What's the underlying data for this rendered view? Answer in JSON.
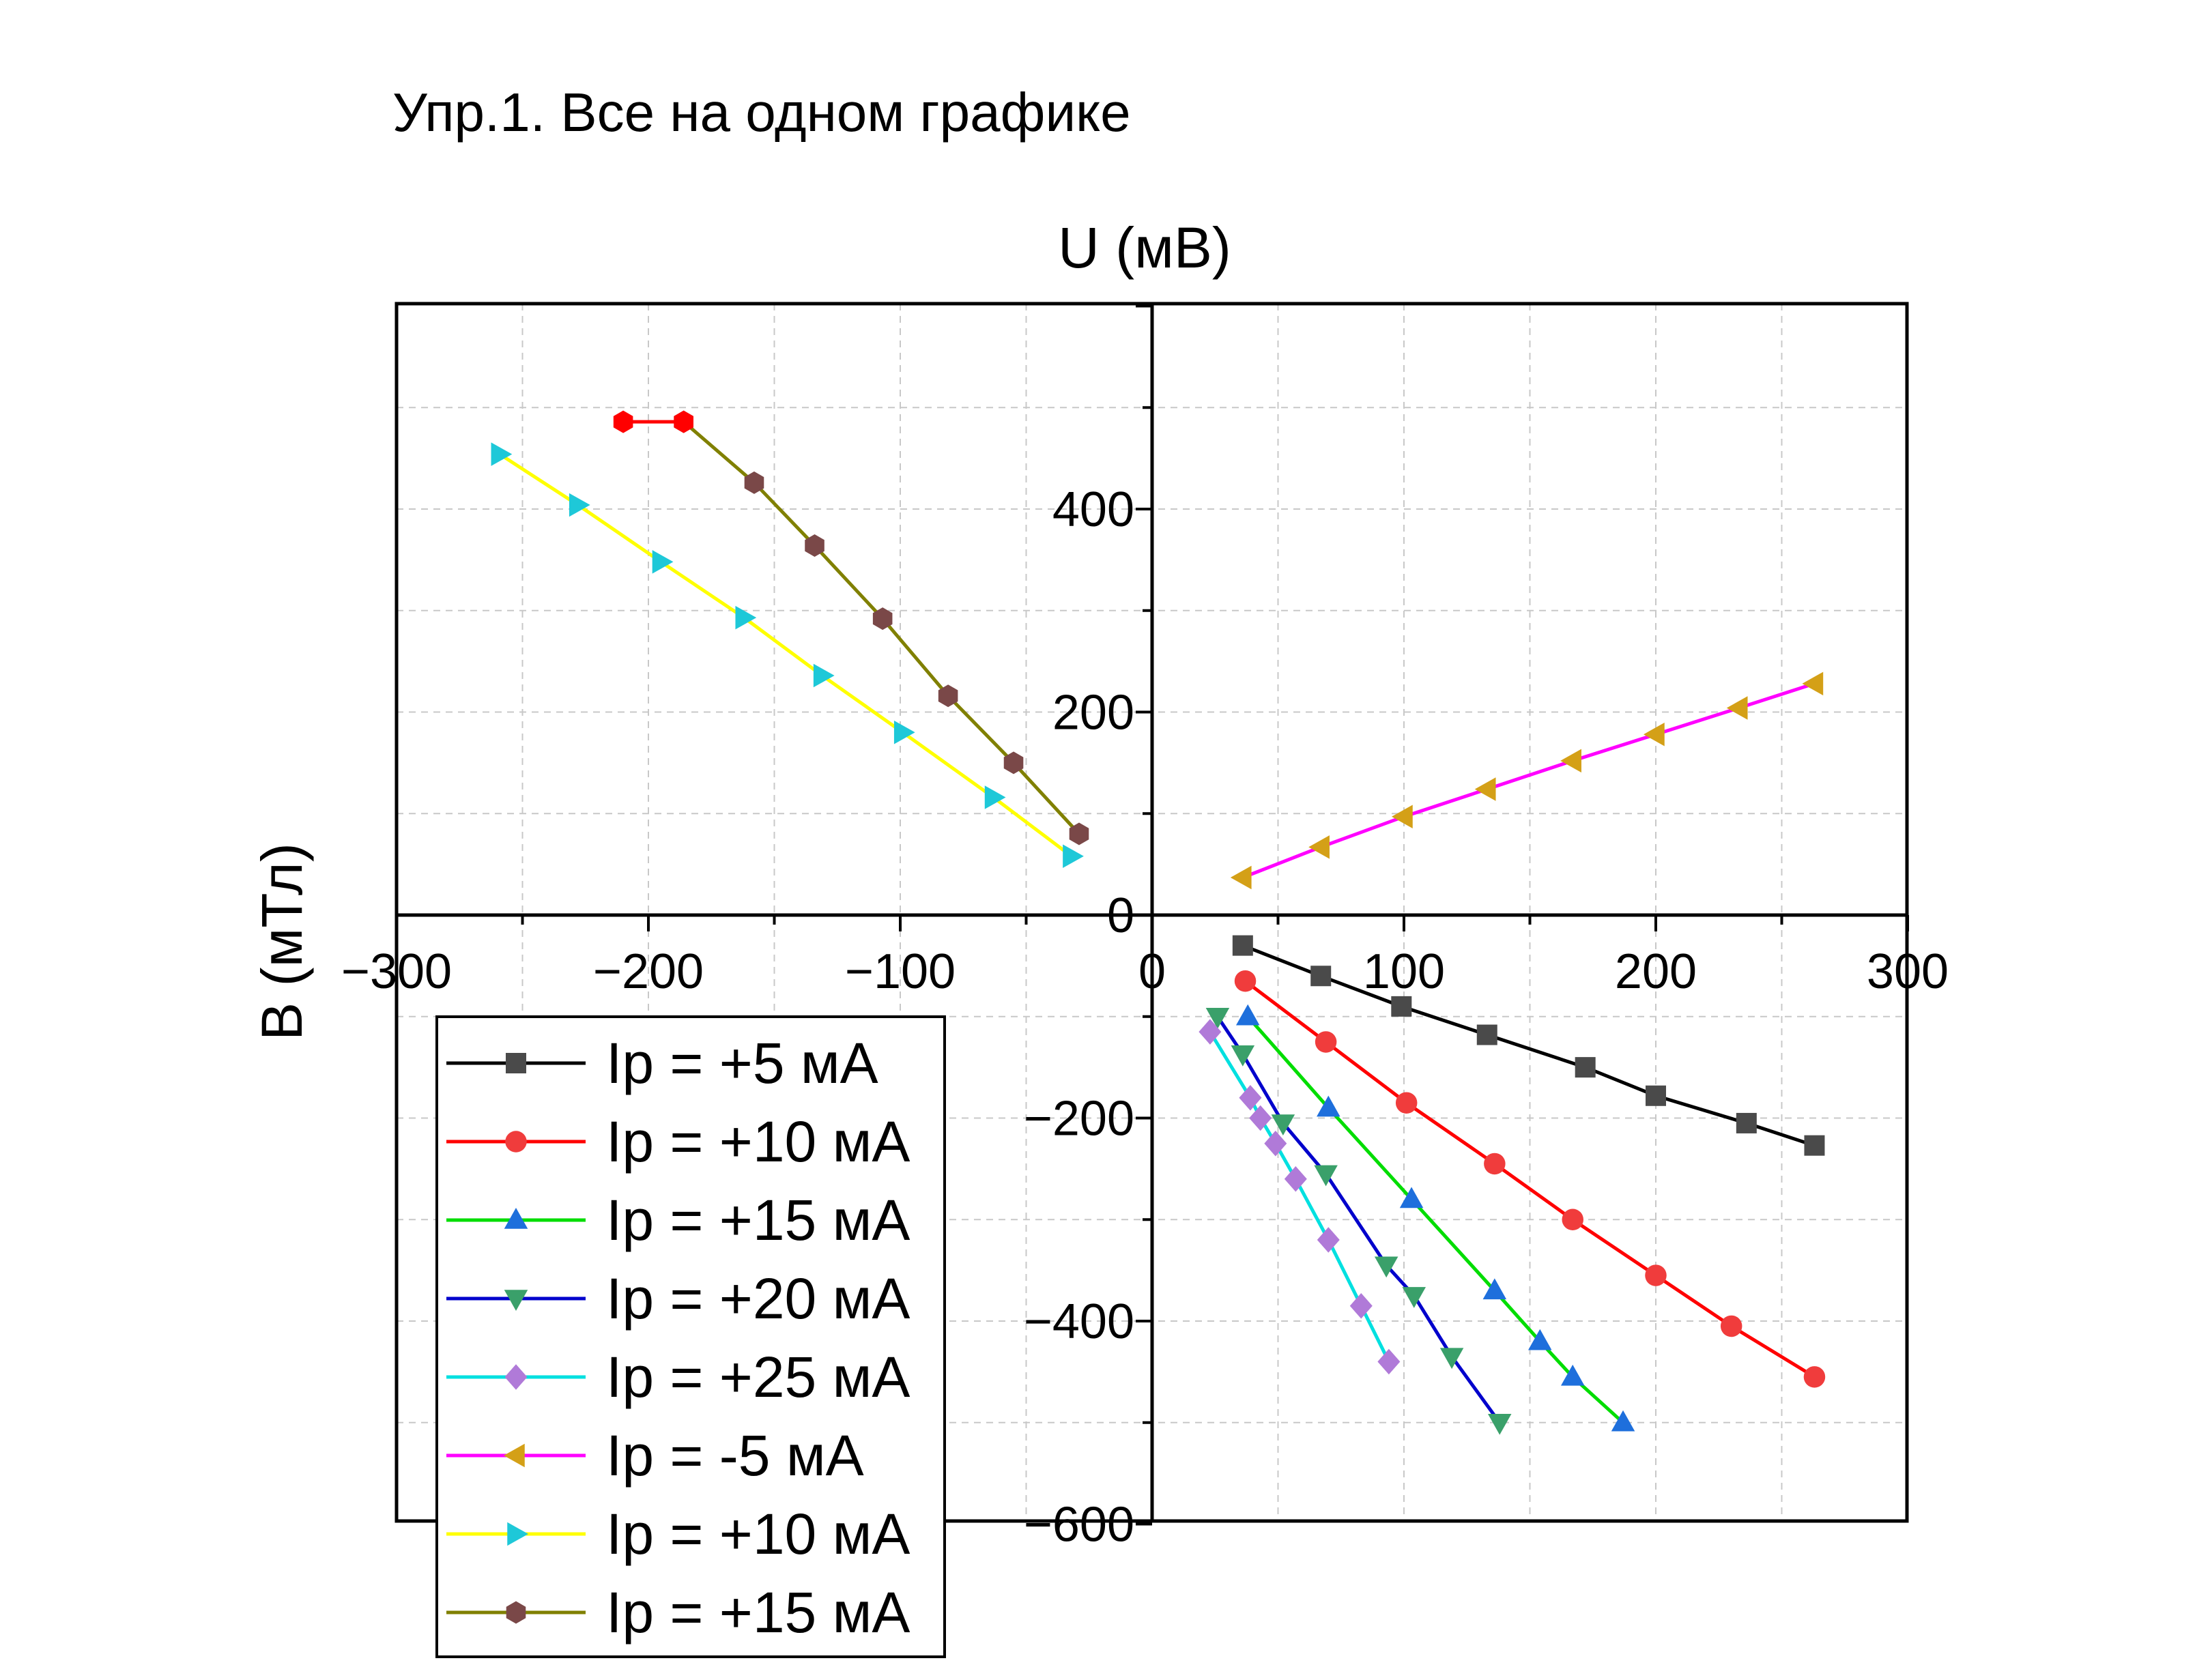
{
  "chart_data": {
    "type": "line",
    "title": "Упр.1. Все на одном графике",
    "xlabel": "U (мВ)",
    "ylabel": "B (мТл)",
    "xlim": [
      -300,
      300
    ],
    "ylim": [
      -600,
      600
    ],
    "x_ticks": [
      -300,
      -200,
      -100,
      0,
      100,
      200,
      300
    ],
    "x_tick_labels": [
      "−300",
      "−200",
      "−100",
      "0",
      "100",
      "200",
      "300"
    ],
    "y_ticks": [
      -600,
      -400,
      -200,
      0,
      200,
      400
    ],
    "y_tick_labels": [
      "−600",
      "−400",
      "−200",
      "0",
      "200",
      "400"
    ],
    "grid": true,
    "legend_position": "bottom-left",
    "series": [
      {
        "name": "Ip = +5 мА",
        "color": "#000000",
        "marker_color": "#4a4a4a",
        "marker": "square",
        "x": [
          36,
          67,
          99,
          133,
          172,
          200,
          236,
          263
        ],
        "y": [
          -30,
          -60,
          -90,
          -118,
          -150,
          -178,
          -205,
          -227
        ]
      },
      {
        "name": "Ip = +10 мА",
        "color": "#ff0000",
        "marker_color": "#f03c3c",
        "marker": "circle",
        "x": [
          37,
          69,
          101,
          136,
          167,
          200,
          230,
          263
        ],
        "y": [
          -65,
          -125,
          -185,
          -245,
          -300,
          -355,
          -405,
          -455
        ]
      },
      {
        "name": "Ip = +15 мА",
        "color": "#00dd00",
        "marker_color": "#1e6fdc",
        "marker": "triangle-up",
        "x": [
          38,
          70,
          103,
          136,
          154,
          167,
          187
        ],
        "y": [
          -100,
          -190,
          -280,
          -370,
          -420,
          -455,
          -500
        ]
      },
      {
        "name": "Ip = +20 мА",
        "color": "#0000cc",
        "marker_color": "#3aa06a",
        "marker": "triangle-down",
        "x": [
          26,
          36,
          52,
          69,
          93,
          104,
          119,
          138
        ],
        "y": [
          -100,
          -137,
          -205,
          -255,
          -345,
          -375,
          -435,
          -500
        ]
      },
      {
        "name": "Ip = +25 мА",
        "color": "#00e0e0",
        "marker_color": "#b07ad8",
        "marker": "diamond",
        "x": [
          23,
          39,
          43,
          49,
          57,
          70,
          83,
          94
        ],
        "y": [
          -115,
          -180,
          -200,
          -225,
          -260,
          -320,
          -385,
          -440
        ]
      },
      {
        "name": "Ip = -5 мА",
        "color": "#ff00ff",
        "marker_color": "#d4a017",
        "marker": "triangle-left",
        "x": [
          36,
          67,
          100,
          133,
          167,
          200,
          233,
          263
        ],
        "y": [
          37,
          67,
          97,
          124,
          152,
          178,
          204,
          228
        ]
      },
      {
        "name": "Ip = +10 мА",
        "color": "#ffff00",
        "marker_color": "#1ec8d8",
        "marker": "triangle-right",
        "x": [
          -259,
          -228,
          -195,
          -162,
          -131,
          -99,
          -63,
          -32
        ],
        "y": [
          454,
          404,
          348,
          293,
          236,
          180,
          116,
          58
        ]
      },
      {
        "name": "Ip = +15 мА",
        "color": "#808000",
        "marker_color": "#7a4848",
        "marker": "hexagon",
        "x": [
          -186,
          -158,
          -134,
          -107,
          -81,
          -55,
          -29
        ],
        "y": [
          486,
          426,
          364,
          292,
          216,
          150,
          80
        ]
      },
      {
        "name": "",
        "color": "#ff0000",
        "marker_color": "#ff0000",
        "marker": "hexagon",
        "x": [
          -210,
          -186
        ],
        "y": [
          486,
          486
        ]
      }
    ]
  }
}
